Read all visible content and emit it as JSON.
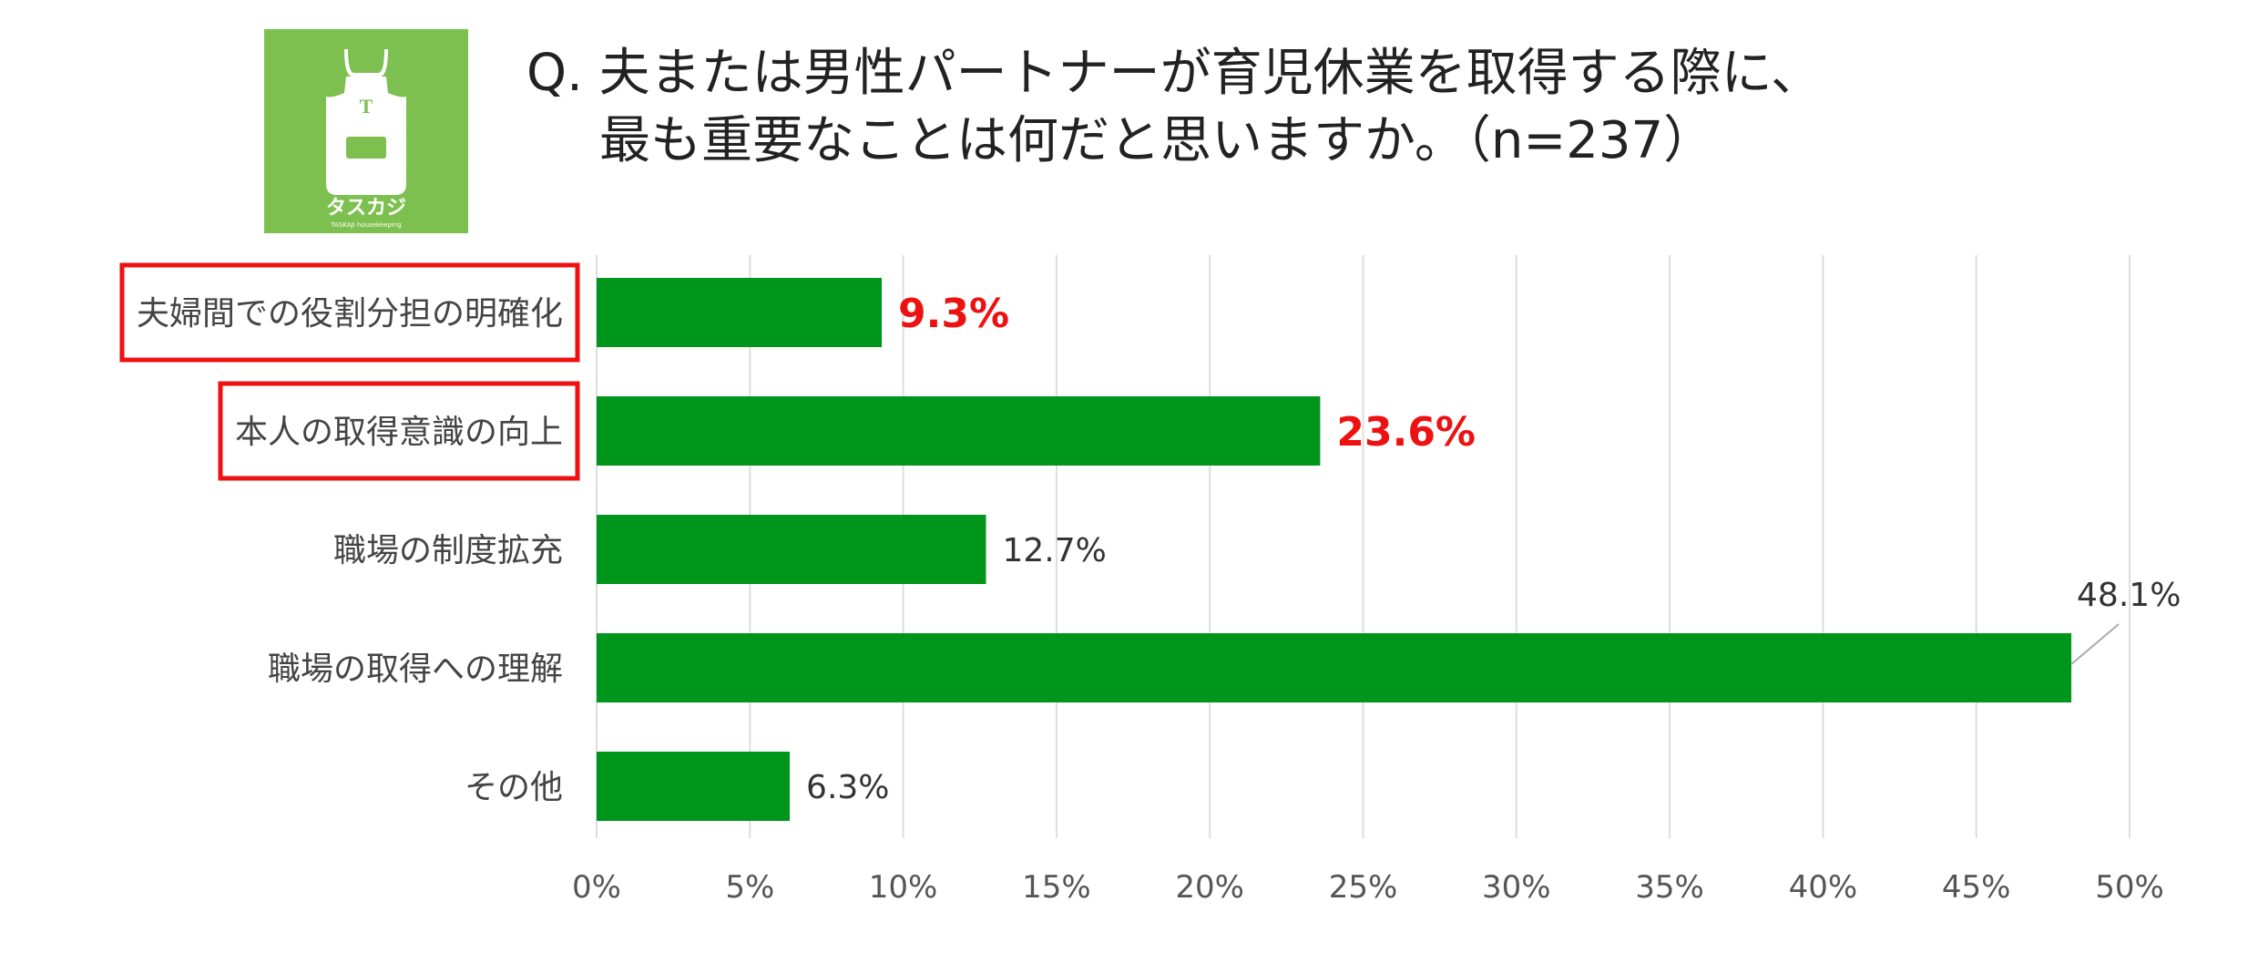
{
  "title": {
    "line1": "Q. 夫または男性パートナーが育児休業を取得する際に、",
    "line2": "最も重要なことは何だと思いますか。（n=237）"
  },
  "logo": {
    "brand_text": "タスカジ",
    "sub_text": "TASKAJI housekeeping",
    "letter": "T",
    "background": "#7dc04f"
  },
  "colors": {
    "bar": "#00961c",
    "highlight_text": "#ee1111",
    "highlight_box": "#ee1111",
    "grid": "#dddddd"
  },
  "chart_data": {
    "type": "bar",
    "orientation": "horizontal",
    "categories": [
      "夫婦間での役割分担の明確化",
      "本人の取得意識の向上",
      "職場の制度拡充",
      "職場の取得への理解",
      "その他"
    ],
    "values": [
      9.3,
      23.6,
      12.7,
      48.1,
      6.3
    ],
    "value_labels": [
      "9.3%",
      "23.6%",
      "12.7%",
      "48.1%",
      "6.3%"
    ],
    "highlighted": [
      true,
      true,
      false,
      false,
      false
    ],
    "xlim": [
      0,
      50
    ],
    "xticks": [
      "0%",
      "5%",
      "10%",
      "15%",
      "20%",
      "25%",
      "30%",
      "35%",
      "40%",
      "45%",
      "50%"
    ],
    "grid": true,
    "legend": "none"
  }
}
